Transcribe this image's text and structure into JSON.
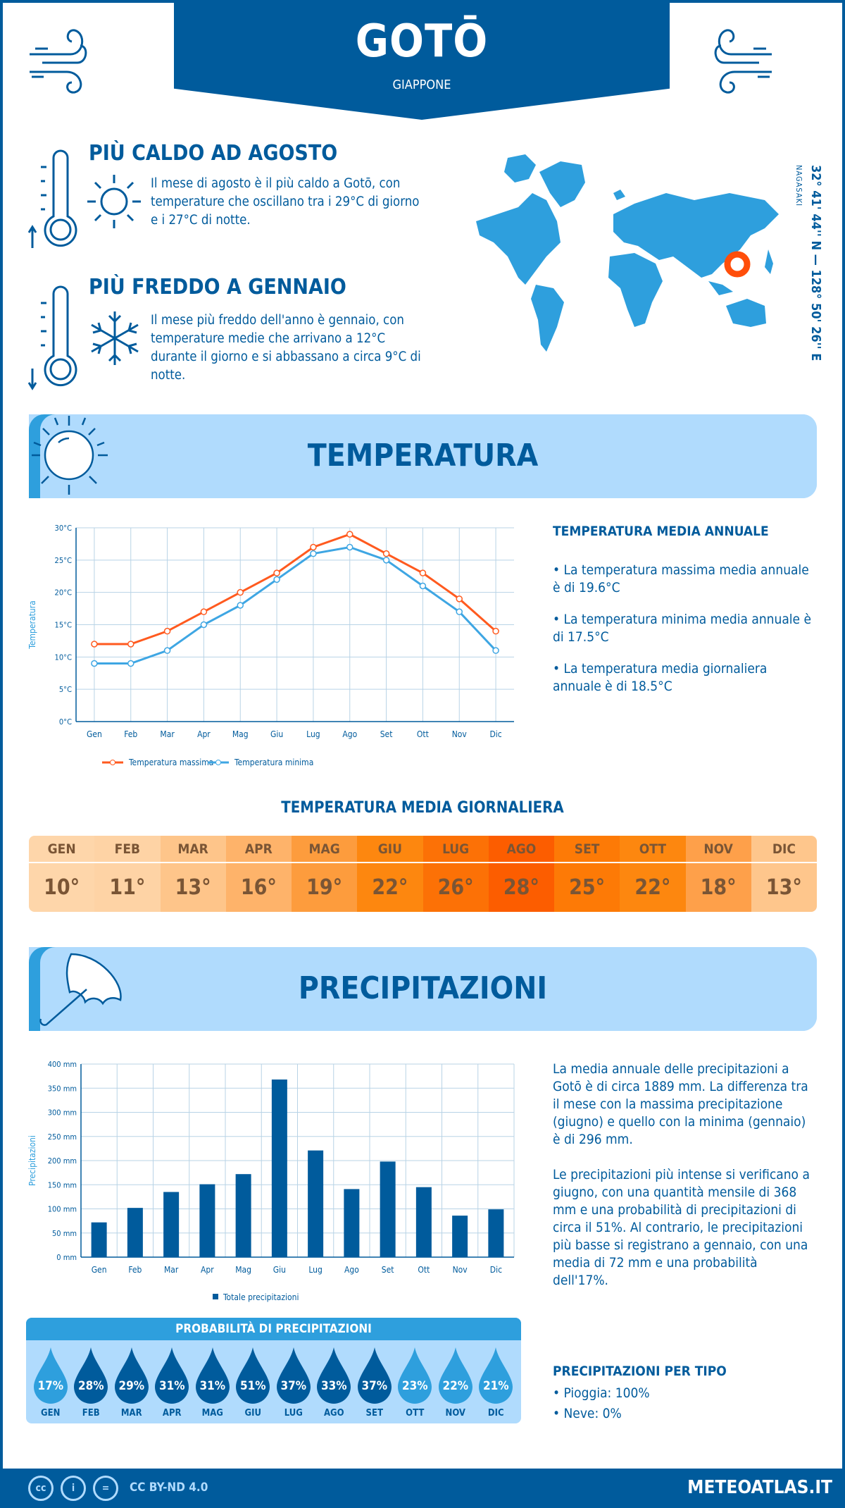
{
  "header": {
    "title": "GOTŌ",
    "country": "GIAPPONE"
  },
  "hottest": {
    "title": "PIÙ CALDO AD AGOSTO",
    "text": "Il mese di agosto è il più caldo a Gotō, con temperature che oscillano tra i 29°C di giorno e i 27°C di notte."
  },
  "coldest": {
    "title": "PIÙ FREDDO A GENNAIO",
    "text": "Il mese più freddo dell'anno è gennaio, con temperature medie che arrivano a 12°C durante il giorno e si abbassano a circa 9°C di notte."
  },
  "location": {
    "coords": "32° 41' 44'' N — 128° 50' 26'' E",
    "region": "NAGASAKI"
  },
  "temperature_section": {
    "title": "TEMPERATURA",
    "annual_title": "TEMPERATURA MEDIA ANNUALE",
    "bullets": [
      "• La temperatura massima media annuale è di 19.6°C",
      "• La temperatura minima media annuale è di 17.5°C",
      "• La temperatura media giornaliera annuale è di 18.5°C"
    ]
  },
  "daily": {
    "title": "TEMPERATURA MEDIA GIORNALIERA",
    "months": [
      "GEN",
      "FEB",
      "MAR",
      "APR",
      "MAG",
      "GIU",
      "LUG",
      "AGO",
      "SET",
      "OTT",
      "NOV",
      "DIC"
    ],
    "values": [
      "10°",
      "11°",
      "13°",
      "16°",
      "19°",
      "22°",
      "26°",
      "28°",
      "25°",
      "22°",
      "18°",
      "13°"
    ],
    "colors": [
      "#fed6aa",
      "#fed3a5",
      "#fec58a",
      "#feb36a",
      "#fd9c3d",
      "#fd870f",
      "#fc7106",
      "#fc5d00",
      "#fd7a06",
      "#fd870f",
      "#fea04a",
      "#fec68c"
    ]
  },
  "precip_section": {
    "title": "PRECIPITAZIONI",
    "para1": "La media annuale delle precipitazioni a Gotō è di circa 1889 mm. La differenza tra il mese con la massima precipitazione (giugno) e quello con la minima (gennaio) è di 296 mm.",
    "para2": "Le precipitazioni più intense si verificano a giugno, con una quantità mensile di 368 mm e una probabilità di precipitazioni di circa il 51%. Al contrario, le precipitazioni più basse si registrano a gennaio, con una media di 72 mm e una probabilità dell'17%."
  },
  "probability": {
    "title": "PROBABILITÀ DI PRECIPITAZIONI",
    "months": [
      "GEN",
      "FEB",
      "MAR",
      "APR",
      "MAG",
      "GIU",
      "LUG",
      "AGO",
      "SET",
      "OTT",
      "NOV",
      "DIC"
    ],
    "values": [
      "17%",
      "28%",
      "29%",
      "31%",
      "31%",
      "51%",
      "37%",
      "33%",
      "37%",
      "23%",
      "22%",
      "21%"
    ],
    "light": [
      true,
      false,
      false,
      false,
      false,
      false,
      false,
      false,
      false,
      true,
      true,
      true
    ]
  },
  "types": {
    "title": "PRECIPITAZIONI PER TIPO",
    "rain": "• Pioggia: 100%",
    "snow": "• Neve: 0%"
  },
  "footer": {
    "license": "CC BY-ND 4.0",
    "site": "METEOATLAS.IT",
    "cc": "cc"
  },
  "colors": {
    "dark": "#005b9c",
    "light": "#2e9fdd",
    "panel": "#b0dbfd",
    "max": "#ff5a1f",
    "min": "#3ea6e3"
  },
  "chart_data": [
    {
      "type": "line",
      "title": "",
      "ylabel": "Temperatura",
      "xlabel": "",
      "categories": [
        "Gen",
        "Feb",
        "Mar",
        "Apr",
        "Mag",
        "Giu",
        "Lug",
        "Ago",
        "Set",
        "Ott",
        "Nov",
        "Dic"
      ],
      "ylim": [
        0,
        30
      ],
      "yticks": [
        "0°C",
        "5°C",
        "10°C",
        "15°C",
        "20°C",
        "25°C",
        "30°C"
      ],
      "grid": true,
      "legend": "bottom",
      "series": [
        {
          "name": "Temperatura massima",
          "values": [
            12,
            12,
            14,
            17,
            20,
            23,
            27,
            29,
            26,
            23,
            19,
            14
          ]
        },
        {
          "name": "Temperatura minima",
          "values": [
            9,
            9,
            11,
            15,
            18,
            22,
            26,
            27,
            25,
            21,
            17,
            11
          ]
        }
      ]
    },
    {
      "type": "bar",
      "title": "",
      "ylabel": "Precipitazioni",
      "xlabel": "",
      "categories": [
        "Gen",
        "Feb",
        "Mar",
        "Apr",
        "Mag",
        "Giu",
        "Lug",
        "Ago",
        "Set",
        "Ott",
        "Nov",
        "Dic"
      ],
      "ylim": [
        0,
        400
      ],
      "yticks": [
        "0 mm",
        "50 mm",
        "100 mm",
        "150 mm",
        "200 mm",
        "250 mm",
        "300 mm",
        "350 mm",
        "400 mm"
      ],
      "grid": true,
      "legend": "bottom",
      "series": [
        {
          "name": "Totale precipitazioni",
          "values": [
            72,
            102,
            135,
            151,
            172,
            368,
            221,
            141,
            198,
            145,
            86,
            99
          ]
        }
      ]
    }
  ]
}
